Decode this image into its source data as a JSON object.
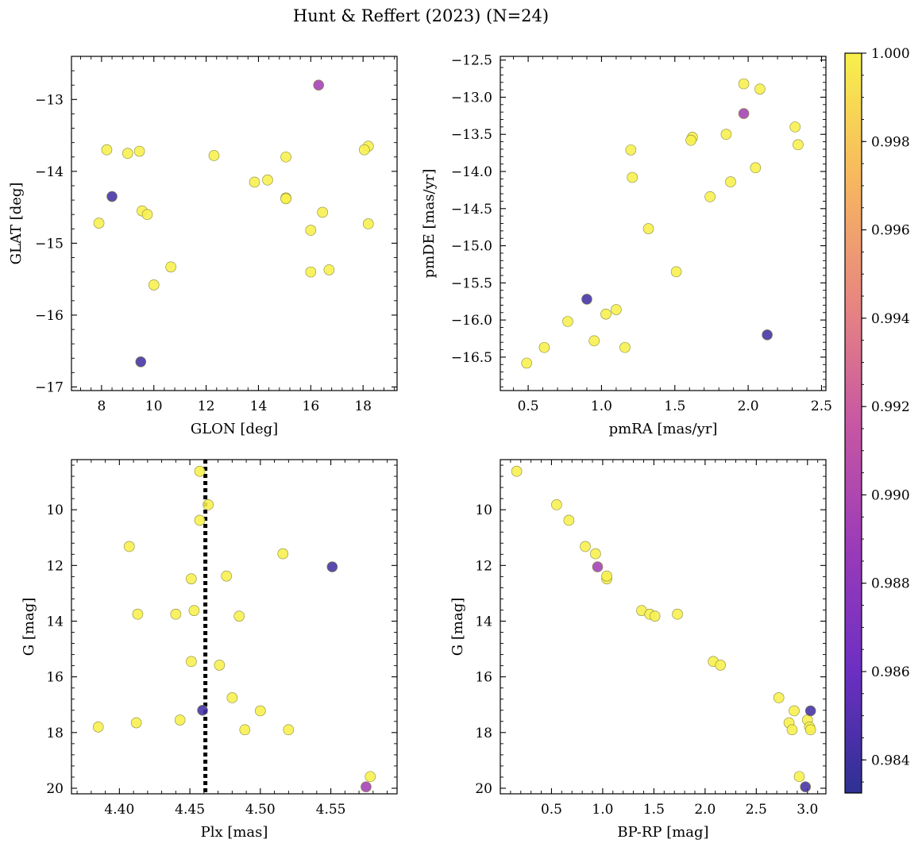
{
  "title": "Hunt & Reffert (2023) (N=24)",
  "chart_data": [
    {
      "type": "scatter",
      "name": "glon-glat",
      "xlabel": "GLON [deg]",
      "ylabel": "GLAT [deg]",
      "xlim": [
        6.85,
        19.3
      ],
      "ylim": [
        -17.05,
        -12.4
      ],
      "y_inverted": false,
      "xticks": [
        8,
        10,
        12,
        14,
        16,
        18
      ],
      "xtick_labels": [
        "8",
        "10",
        "12",
        "14",
        "16",
        "18"
      ],
      "yticks": [
        -13,
        -14,
        -15,
        -16,
        -17
      ],
      "ytick_labels": [
        "−13",
        "−14",
        "−15",
        "−16",
        "−17"
      ],
      "x": [
        8.4,
        9.5,
        16.3,
        18.2,
        18.05,
        8.2,
        9.0,
        9.45,
        12.3,
        15.05,
        13.85,
        14.35,
        15.05,
        15.05,
        9.55,
        9.75,
        16.45,
        7.9,
        16.0,
        18.2,
        10.65,
        10.0,
        16.0,
        16.7
      ],
      "y": [
        -14.35,
        -16.65,
        -12.8,
        -13.65,
        -13.7,
        -13.7,
        -13.75,
        -13.72,
        -13.78,
        -13.8,
        -14.15,
        -14.12,
        -14.37,
        -14.38,
        -14.55,
        -14.6,
        -14.57,
        -14.72,
        -14.82,
        -14.73,
        -15.33,
        -15.58,
        -15.4,
        -15.37
      ]
    },
    {
      "type": "scatter",
      "name": "pmra-pmde",
      "xlabel": "pmRA [mas/yr]",
      "ylabel": "pmDE [mas/yr]",
      "xlim": [
        0.31,
        2.53
      ],
      "ylim": [
        -16.95,
        -12.45
      ],
      "y_inverted": false,
      "xticks": [
        0.5,
        1.0,
        1.5,
        2.0,
        2.5
      ],
      "xtick_labels": [
        "0.5",
        "1.0",
        "1.5",
        "2.0",
        "2.5"
      ],
      "yticks": [
        -12.5,
        -13.0,
        -13.5,
        -14.0,
        -14.5,
        -15.0,
        -15.5,
        -16.0,
        -16.5
      ],
      "ytick_labels": [
        "−12.5",
        "−13.0",
        "−13.5",
        "−14.0",
        "−14.5",
        "−15.0",
        "−15.5",
        "−16.0",
        "−16.5"
      ],
      "x": [
        0.9,
        2.13,
        1.97,
        1.97,
        2.08,
        2.32,
        2.34,
        1.62,
        1.61,
        1.85,
        1.2,
        2.05,
        1.21,
        1.88,
        1.74,
        1.32,
        1.51,
        1.1,
        1.03,
        0.77,
        0.95,
        0.61,
        1.16,
        0.49
      ],
      "y": [
        -15.72,
        -16.2,
        -13.22,
        -12.82,
        -12.89,
        -13.4,
        -13.64,
        -13.54,
        -13.58,
        -13.5,
        -13.71,
        -13.95,
        -14.08,
        -14.14,
        -14.34,
        -14.77,
        -15.35,
        -15.86,
        -15.92,
        -16.02,
        -16.28,
        -16.37,
        -16.37,
        -16.58
      ]
    },
    {
      "type": "scatter",
      "name": "plx-g",
      "xlabel": "Plx [mas]",
      "ylabel": "G [mag]",
      "xlim": [
        4.366,
        4.597
      ],
      "ylim": [
        20.2,
        8.2
      ],
      "y_inverted": true,
      "xticks": [
        4.4,
        4.45,
        4.5,
        4.55
      ],
      "xtick_labels": [
        "4.40",
        "4.45",
        "4.50",
        "4.55"
      ],
      "yticks": [
        10,
        12,
        14,
        16,
        18,
        20
      ],
      "ytick_labels": [
        "10",
        "12",
        "14",
        "16",
        "18",
        "20"
      ],
      "vline": 4.461,
      "x": [
        4.459,
        4.551,
        4.575,
        4.457,
        4.463,
        4.457,
        4.407,
        4.516,
        4.451,
        4.476,
        4.413,
        4.44,
        4.453,
        4.485,
        4.451,
        4.471,
        4.48,
        4.5,
        4.385,
        4.412,
        4.443,
        4.489,
        4.52,
        4.578
      ],
      "y": [
        17.2,
        12.05,
        19.95,
        8.62,
        9.82,
        10.38,
        11.32,
        11.58,
        12.48,
        12.38,
        13.75,
        13.75,
        13.62,
        13.82,
        15.45,
        15.58,
        16.75,
        17.22,
        17.8,
        17.65,
        17.55,
        17.9,
        17.9,
        19.58
      ]
    },
    {
      "type": "scatter",
      "name": "bprp-g",
      "xlabel": "BP-RP [mag]",
      "ylabel": "G [mag]",
      "xlim": [
        0.0,
        3.18
      ],
      "ylim": [
        20.2,
        8.2
      ],
      "y_inverted": true,
      "xticks": [
        0.5,
        1.0,
        1.5,
        2.0,
        2.5,
        3.0
      ],
      "xtick_labels": [
        "0.5",
        "1.0",
        "1.5",
        "2.0",
        "2.5",
        "3.0"
      ],
      "yticks": [
        10,
        12,
        14,
        16,
        18,
        20
      ],
      "ytick_labels": [
        "10",
        "12",
        "14",
        "16",
        "18",
        "20"
      ],
      "x": [
        3.03,
        2.98,
        0.95,
        0.16,
        0.55,
        0.67,
        0.83,
        0.93,
        1.04,
        1.04,
        1.38,
        1.46,
        1.51,
        1.73,
        2.08,
        2.15,
        2.72,
        2.87,
        3.0,
        3.02,
        2.82,
        2.85,
        3.03,
        2.92
      ],
      "y": [
        17.22,
        19.95,
        12.05,
        8.62,
        9.82,
        10.38,
        11.32,
        11.58,
        12.48,
        12.38,
        13.62,
        13.75,
        13.82,
        13.75,
        15.45,
        15.58,
        16.75,
        17.22,
        17.55,
        17.8,
        17.65,
        17.9,
        17.9,
        19.58
      ]
    }
  ],
  "colorbar": {
    "min": 0.98325,
    "max": 1.0,
    "ticks": [
      1.0,
      0.998,
      0.996,
      0.994,
      0.992,
      0.99,
      0.988,
      0.986,
      0.984
    ],
    "tick_labels": [
      "1.000",
      "0.998",
      "0.996",
      "0.994",
      "0.992",
      "0.990",
      "0.988",
      "0.986",
      "0.984"
    ],
    "colormap": "plasma",
    "colors": [
      "#2e3192",
      "#6d2fc3",
      "#9b3bb8",
      "#c757a3",
      "#e8877f",
      "#f7b85e",
      "#f7f04c"
    ],
    "values": [
      0.9842,
      0.9842,
      0.9893,
      1.0,
      1.0,
      1.0,
      1.0,
      1.0,
      1.0,
      1.0,
      1.0,
      1.0,
      1.0,
      1.0,
      1.0,
      1.0,
      1.0,
      1.0,
      1.0,
      1.0,
      1.0,
      1.0,
      1.0,
      1.0
    ]
  }
}
